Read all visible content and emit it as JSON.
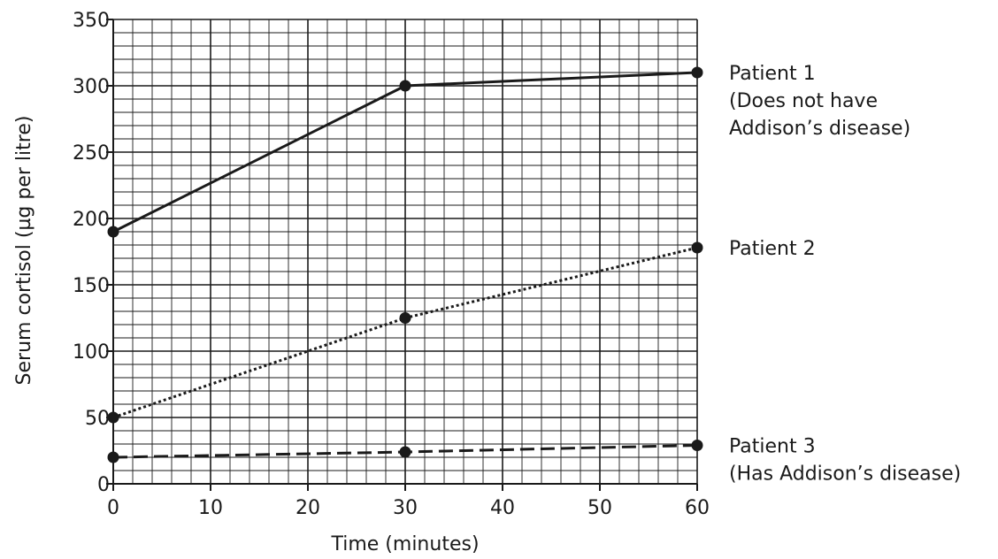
{
  "chart_data": {
    "type": "line",
    "title": "",
    "xlabel": "Time (minutes)",
    "ylabel": "Serum cortisol (µg per litre)",
    "xlim": [
      0,
      60
    ],
    "ylim": [
      0,
      350
    ],
    "xticks": [
      0,
      10,
      20,
      30,
      40,
      50,
      60
    ],
    "yticks": [
      0,
      50,
      100,
      150,
      200,
      250,
      300,
      350
    ],
    "x_minor_step": 2,
    "y_minor_step": 10,
    "grid": true,
    "x": [
      0,
      30,
      60
    ],
    "series": [
      {
        "id": "patient-1",
        "values": [
          190,
          300,
          310
        ],
        "style": "solid",
        "label_lines": [
          "Patient 1",
          "(Does not have",
          "Addison’s disease)"
        ]
      },
      {
        "id": "patient-2",
        "values": [
          50,
          125,
          178
        ],
        "style": "dotted",
        "label_lines": [
          "Patient 2"
        ]
      },
      {
        "id": "patient-3",
        "values": [
          20,
          24,
          29
        ],
        "style": "dashed",
        "label_lines": [
          "Patient 3",
          "(Has Addison’s disease)"
        ]
      }
    ]
  }
}
